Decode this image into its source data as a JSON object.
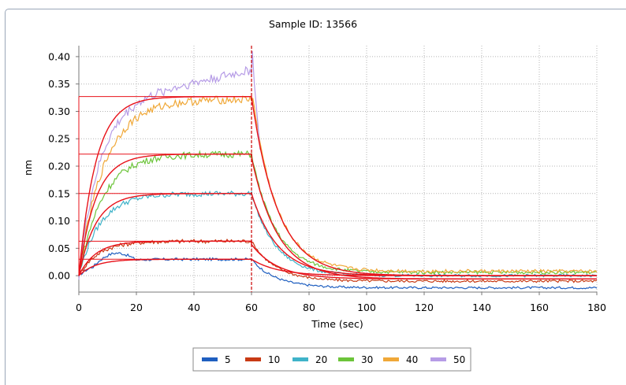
{
  "window": {
    "title": "Sample ID: 13566"
  },
  "chart_data": {
    "type": "line",
    "title": "Sample ID: 13566",
    "xlabel": "Time (sec)",
    "ylabel": "nm",
    "xlim": [
      0,
      180
    ],
    "ylim": [
      -0.03,
      0.42
    ],
    "xticks": [
      0,
      20,
      40,
      60,
      80,
      100,
      120,
      140,
      160,
      180
    ],
    "yticks": [
      0.0,
      0.05,
      0.1,
      0.15,
      0.2,
      0.25,
      0.3,
      0.35,
      0.4
    ],
    "ytick_labels": [
      "0.00",
      "0.05",
      "0.10",
      "0.15",
      "0.20",
      "0.25",
      "0.30",
      "0.35",
      "0.40"
    ],
    "grid": true,
    "legend_position": "bottom-center",
    "injection_marker_x": 60,
    "fit_color": "#e8121a",
    "series": [
      {
        "name": "5",
        "color": "#1f5fc0",
        "plateau": 0.03,
        "peak": 0.045,
        "tail": -0.022
      },
      {
        "name": "10",
        "color": "#c83a14",
        "plateau": 0.063,
        "peak": 0.068,
        "tail": -0.01
      },
      {
        "name": "20",
        "color": "#3fb3c9",
        "plateau": 0.15,
        "peak": 0.152,
        "tail": 0.0
      },
      {
        "name": "30",
        "color": "#6cc43a",
        "plateau": 0.222,
        "peak": 0.224,
        "tail": 0.006
      },
      {
        "name": "40",
        "color": "#f0a838",
        "plateau": 0.322,
        "peak": 0.345,
        "tail": 0.008
      },
      {
        "name": "50",
        "color": "#b69ce6",
        "plateau": 0.375,
        "peak": 0.41,
        "tail": null
      }
    ],
    "fit_plateaus": [
      0.03,
      0.063,
      0.15,
      0.222,
      0.327
    ]
  }
}
